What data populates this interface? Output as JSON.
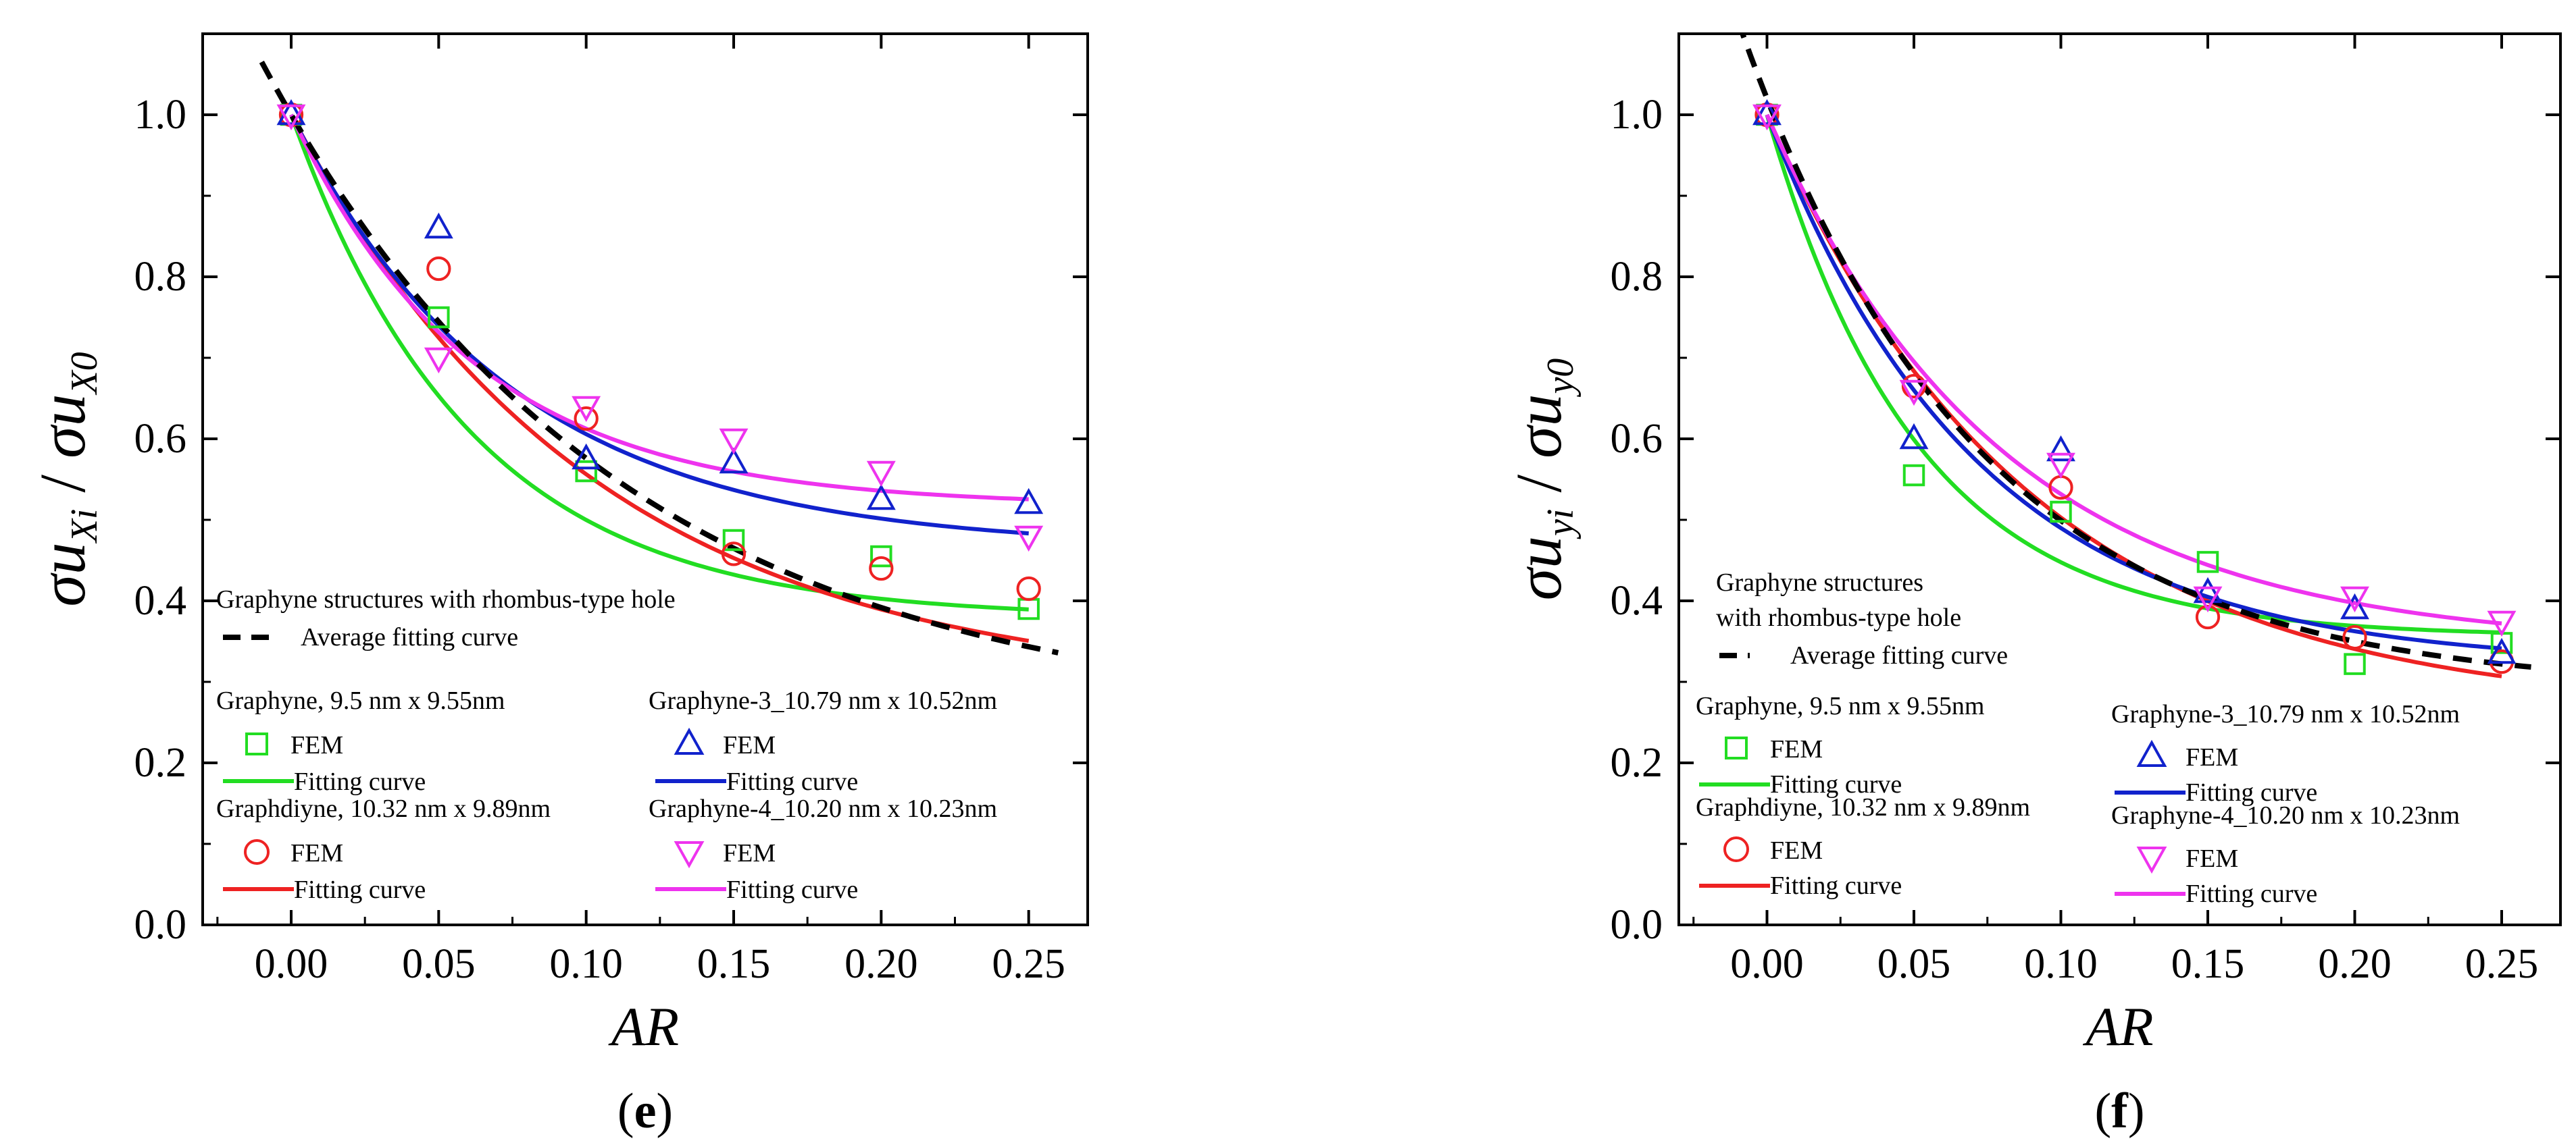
{
  "chart_data": [
    {
      "type": "scatter",
      "panel_label": "e",
      "xlabel": "AR",
      "ylabel": {
        "sigma_u": "σu",
        "num_sub": "Xi",
        "slash": " / ",
        "den_sub": "X0"
      },
      "xlim": [
        -0.03,
        0.27
      ],
      "ylim": [
        0.0,
        1.1
      ],
      "x_ticks": [
        "0.00",
        "0.05",
        "0.10",
        "0.15",
        "0.20",
        "0.25"
      ],
      "y_ticks": [
        "0.0",
        "0.2",
        "0.4",
        "0.6",
        "0.8",
        "1.0"
      ],
      "legend": {
        "title_lines": [
          "Graphyne structures with rhombus-type hole"
        ],
        "average_label": "Average fitting curve",
        "groups": [
          {
            "name": "Graphyne,  9.5 nm x 9.55nm",
            "marker_label": "FEM",
            "line_label": "Fitting curve"
          },
          {
            "name": "Graphdiyne, 10.32 nm x 9.89nm",
            "marker_label": "FEM",
            "line_label": "Fitting curve"
          },
          {
            "name": "Graphyne-3_10.79 nm x 10.52nm",
            "marker_label": "FEM",
            "line_label": "Fitting curve"
          },
          {
            "name": "Graphyne-4_10.20 nm x 10.23nm",
            "marker_label": "FEM",
            "line_label": "Fitting curve"
          }
        ]
      },
      "series": [
        {
          "name": "Graphyne",
          "marker": "square",
          "color": "#22dd22",
          "x": [
            0,
            0.05,
            0.1,
            0.15,
            0.2,
            0.25
          ],
          "y": [
            1.0,
            0.75,
            0.56,
            0.475,
            0.455,
            0.39
          ],
          "fit": {
            "A": 0.621,
            "t": 0.0611,
            "C": 0.379
          }
        },
        {
          "name": "Graphdiyne",
          "marker": "circle",
          "color": "#ee2222",
          "x": [
            0,
            0.05,
            0.1,
            0.15,
            0.2,
            0.25
          ],
          "y": [
            1.0,
            0.81,
            0.625,
            0.458,
            0.44,
            0.415
          ],
          "fit": {
            "A": 0.711,
            "t": 0.1022,
            "C": 0.289
          }
        },
        {
          "name": "Graphyne-3",
          "marker": "triangle-up",
          "color": "#1122cc",
          "x": [
            0,
            0.05,
            0.1,
            0.15,
            0.2,
            0.25
          ],
          "y": [
            1.0,
            0.86,
            0.575,
            0.57,
            0.525,
            0.52
          ],
          "fit": {
            "A": 0.536,
            "t": 0.0752,
            "C": 0.464
          }
        },
        {
          "name": "Graphyne-4",
          "marker": "triangle-down",
          "color": "#ee33ee",
          "x": [
            0,
            0.05,
            0.1,
            0.15,
            0.2,
            0.25
          ],
          "y": [
            1.0,
            0.7,
            0.64,
            0.6,
            0.56,
            0.48
          ],
          "fit": {
            "A": 0.483,
            "t": 0.0617,
            "C": 0.517
          }
        }
      ],
      "average_fit": {
        "color": "#000000",
        "A": 0.75,
        "t": 0.12,
        "C": 0.25,
        "x_range": [
          -0.01,
          0.26
        ]
      }
    },
    {
      "type": "scatter",
      "panel_label": "f",
      "xlabel": "AR",
      "ylabel": {
        "sigma_u": "σu",
        "num_sub": "yi",
        "slash": " / ",
        "den_sub": "y0"
      },
      "xlim": [
        -0.03,
        0.27
      ],
      "ylim": [
        0.0,
        1.1
      ],
      "x_ticks": [
        "0.00",
        "0.05",
        "0.10",
        "0.15",
        "0.20",
        "0.25"
      ],
      "y_ticks": [
        "0.0",
        "0.2",
        "0.4",
        "0.6",
        "0.8",
        "1.0"
      ],
      "legend": {
        "title_lines": [
          "Graphyne structures",
          "with rhombus-type hole"
        ],
        "average_label": "Average fitting curve",
        "groups": [
          {
            "name": "Graphyne,  9.5 nm x 9.55nm",
            "marker_label": "FEM",
            "line_label": "Fitting curve"
          },
          {
            "name": "Graphdiyne, 10.32 nm x 9.89nm",
            "marker_label": "FEM",
            "line_label": "Fitting curve"
          },
          {
            "name": "Graphyne-3_10.79 nm x 10.52nm",
            "marker_label": "FEM",
            "line_label": "Fitting curve"
          },
          {
            "name": "Graphyne-4_10.20 nm x 10.23nm",
            "marker_label": "FEM",
            "line_label": "Fitting curve"
          }
        ]
      },
      "series": [
        {
          "name": "Graphyne",
          "marker": "square",
          "color": "#22dd22",
          "x": [
            0,
            0.05,
            0.1,
            0.15,
            0.2,
            0.25
          ],
          "y": [
            1.0,
            0.555,
            0.51,
            0.448,
            0.322,
            0.348
          ],
          "fit": {
            "A": 0.644,
            "t": 0.0513,
            "C": 0.356
          }
        },
        {
          "name": "Graphdiyne",
          "marker": "circle",
          "color": "#ee2222",
          "x": [
            0,
            0.05,
            0.1,
            0.15,
            0.2,
            0.25
          ],
          "y": [
            1.0,
            0.665,
            0.54,
            0.38,
            0.355,
            0.325
          ],
          "fit": {
            "A": 0.738,
            "t": 0.0893,
            "C": 0.262
          }
        },
        {
          "name": "Graphyne-3",
          "marker": "triangle-up",
          "color": "#1122cc",
          "x": [
            0,
            0.05,
            0.1,
            0.15,
            0.2,
            0.25
          ],
          "y": [
            1.0,
            0.6,
            0.585,
            0.41,
            0.39,
            0.335
          ],
          "fit": {
            "A": 0.68,
            "t": 0.0721,
            "C": 0.32
          }
        },
        {
          "name": "Graphyne-4",
          "marker": "triangle-down",
          "color": "#ee33ee",
          "x": [
            0,
            0.05,
            0.1,
            0.15,
            0.2,
            0.25
          ],
          "y": [
            1.0,
            0.66,
            0.57,
            0.405,
            0.405,
            0.375
          ],
          "fit": {
            "A": 0.657,
            "t": 0.0802,
            "C": 0.343
          }
        }
      ],
      "average_fit": {
        "color": "#000000",
        "A": 0.73,
        "t": 0.08,
        "C": 0.29,
        "x_range": [
          -0.01,
          0.26
        ]
      }
    }
  ]
}
